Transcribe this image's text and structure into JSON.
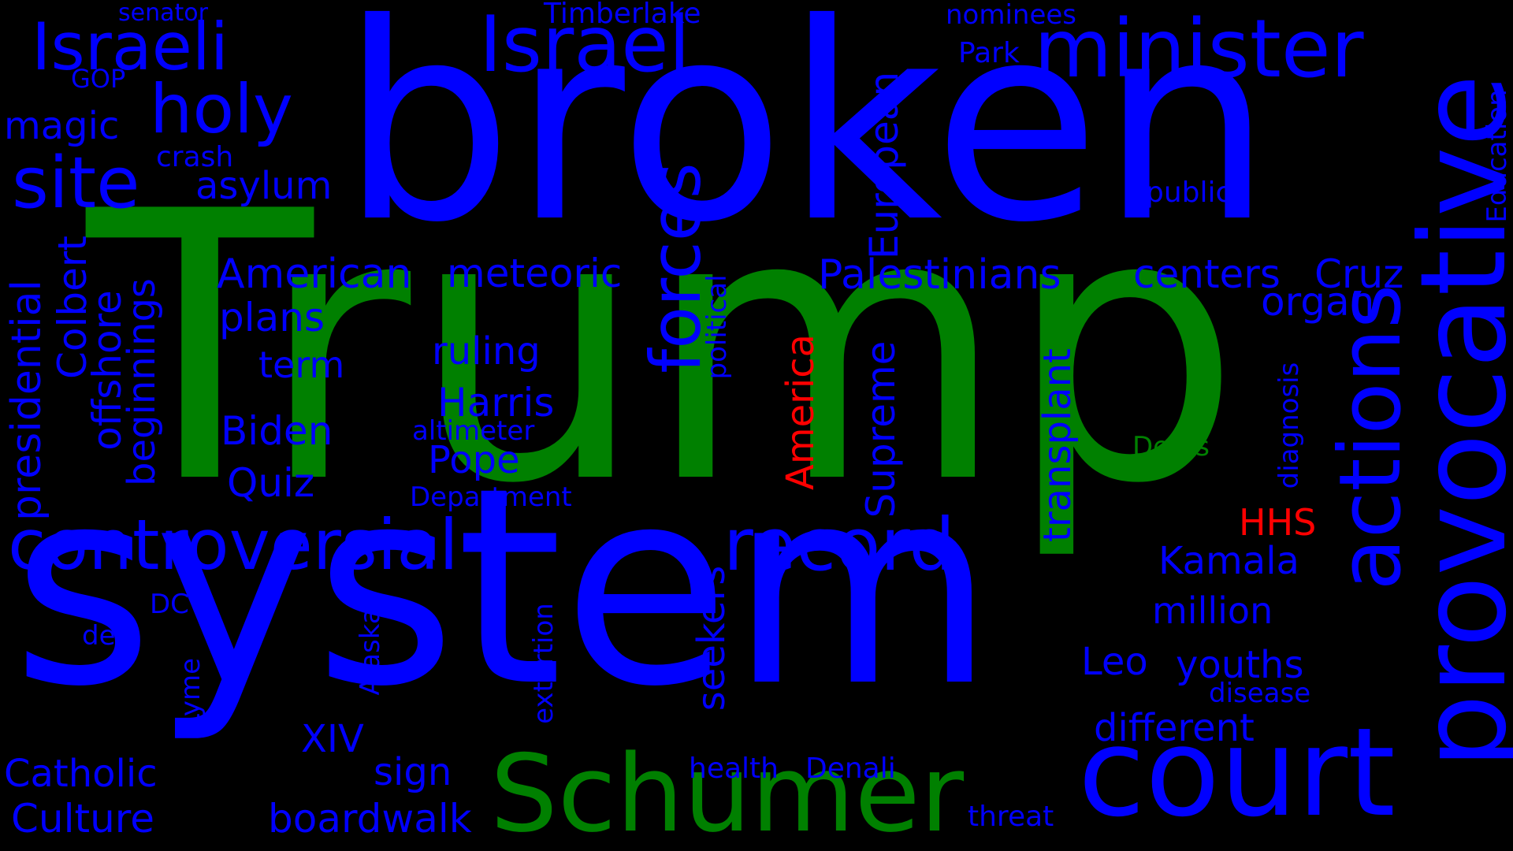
{
  "palette": {
    "background": "#000000",
    "blue": "#0000ff",
    "green": "#008000",
    "red": "#ff0000"
  },
  "words": {
    "broken": "broken",
    "trump": "Trump",
    "system": "system",
    "schumer": "Schumer",
    "court": "court",
    "provocative": "provocative",
    "actions": "actions",
    "minister": "minister",
    "israel": "Israel",
    "israeli": "Israeli",
    "holy": "holy",
    "site": "site",
    "controversial": "controversial",
    "record": "record",
    "forces": "forces",
    "america": "America",
    "senator": "senator",
    "timberlake": "Timberlake",
    "nominees": "nominees",
    "park": "Park",
    "gop": "GOP",
    "magic": "magic",
    "crash": "crash",
    "asylum": "asylum",
    "public": "public",
    "education": "Education",
    "european": "European",
    "american": "American",
    "meteoric": "meteoric",
    "palestinians": "Palestinians",
    "centers": "centers",
    "cruz": "Cruz",
    "organ": "organ",
    "plans": "plans",
    "term": "term",
    "ruling": "ruling",
    "harris": "Harris",
    "biden": "Biden",
    "altimeter": "altimeter",
    "pope": "Pope",
    "quiz": "Quiz",
    "department": "Department",
    "dems": "Dems",
    "hhs": "HHS",
    "kamala": "Kamala",
    "million": "million",
    "leo": "Leo",
    "youths": "youths",
    "disease": "disease",
    "different": "different",
    "dc": "DC",
    "deal": "deal",
    "xiv": "XIV",
    "sign": "sign",
    "catholic": "Catholic",
    "culture": "Culture",
    "boardwalk": "boardwalk",
    "health": "health",
    "denali": "Denali",
    "threat": "threat",
    "presidential": "presidential",
    "colbert": "Colbert",
    "offshore": "offshore",
    "beginnings": "beginnings",
    "supreme": "Supreme",
    "transplant": "transplant",
    "political": "political",
    "seekers": "seekers",
    "diagnosis": "diagnosis",
    "alaskas": "Alaskas",
    "lyme": "Lyme",
    "extortion": "extortion"
  }
}
